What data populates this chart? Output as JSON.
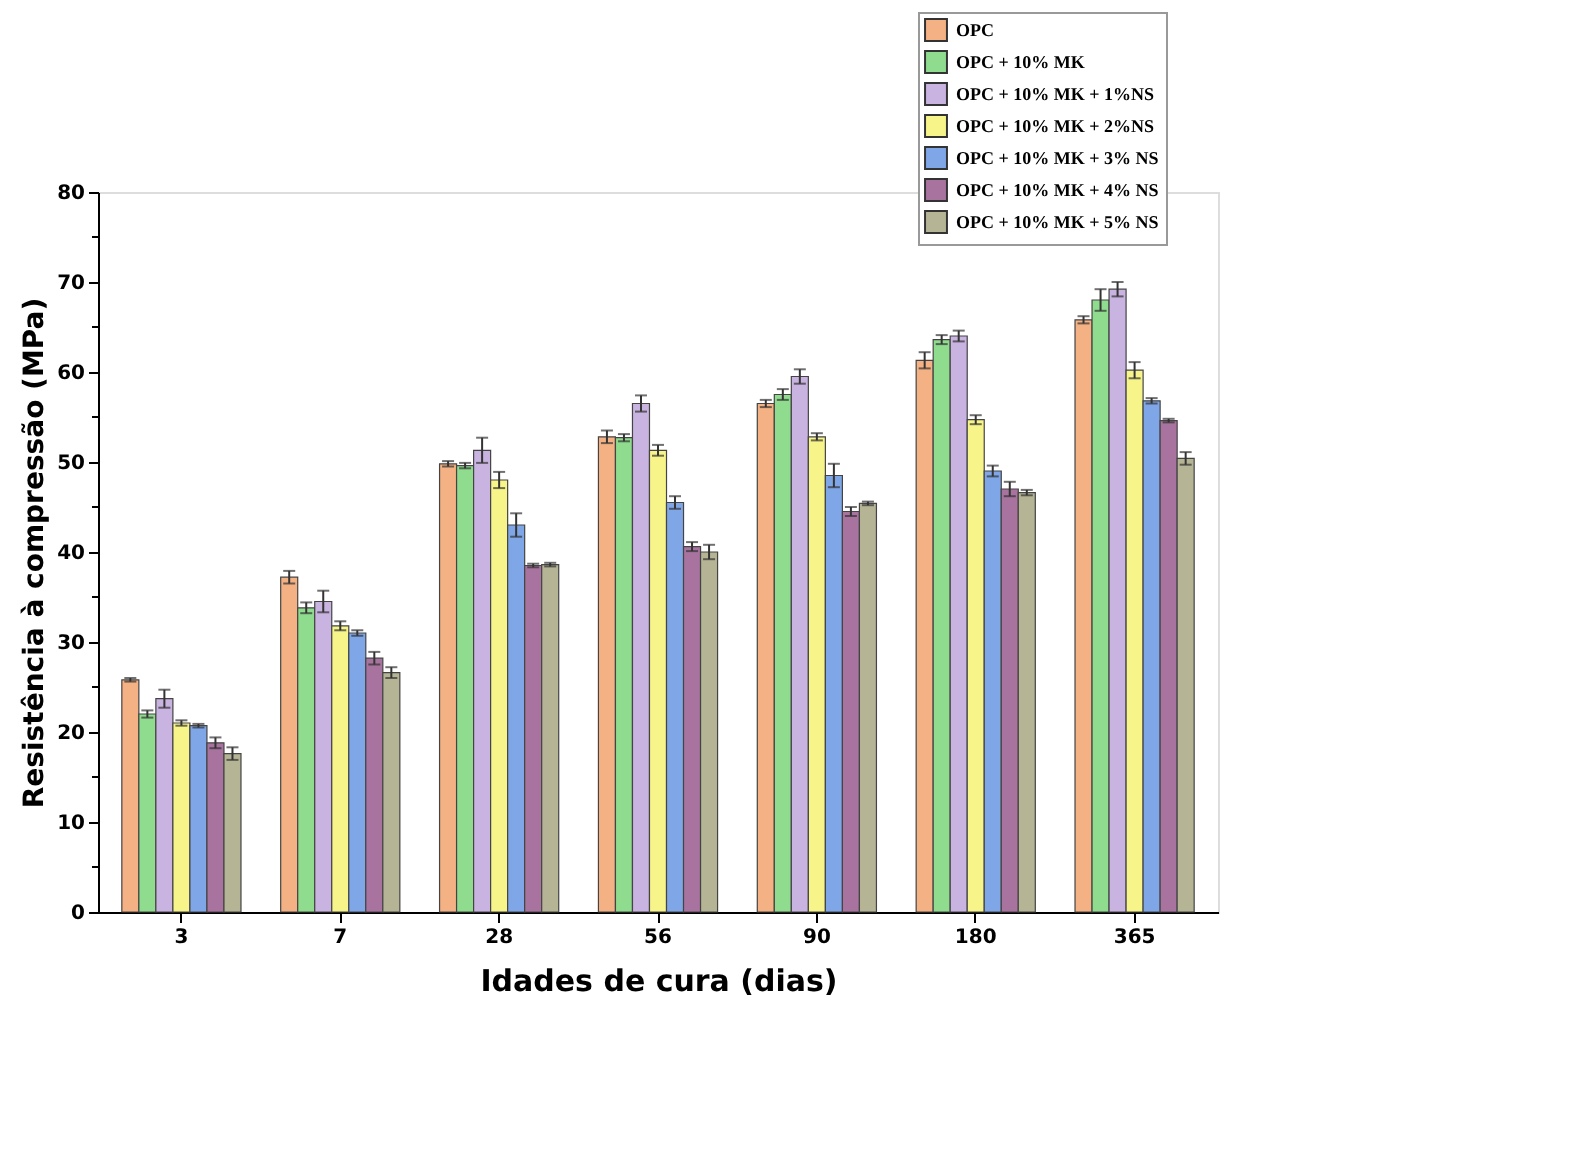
{
  "chart_data": {
    "type": "bar",
    "xlabel": "Idades de cura (dias)",
    "ylabel": "Resistência à compressão (MPa)",
    "categories": [
      "3",
      "7",
      "28",
      "56",
      "90",
      "180",
      "365"
    ],
    "series": [
      {
        "name": "OPC",
        "color": "#f4b183",
        "values": [
          25.8,
          37.2,
          49.8,
          52.8,
          56.5,
          61.3,
          65.8
        ],
        "errors": [
          0.2,
          0.7,
          0.3,
          0.7,
          0.4,
          0.9,
          0.4
        ]
      },
      {
        "name": "OPC + 10% MK",
        "color": "#8fdc8f",
        "values": [
          22.0,
          33.8,
          49.6,
          52.7,
          57.5,
          63.6,
          68.0
        ],
        "errors": [
          0.4,
          0.6,
          0.3,
          0.4,
          0.6,
          0.5,
          1.2
        ]
      },
      {
        "name": "OPC + 10% MK + 1%NS",
        "color": "#c9b3e0",
        "values": [
          23.7,
          34.5,
          51.3,
          56.5,
          59.5,
          64.0,
          69.2
        ],
        "errors": [
          1.0,
          1.2,
          1.4,
          0.9,
          0.8,
          0.6,
          0.8
        ]
      },
      {
        "name": "OPC + 10% MK + 2%NS",
        "color": "#f7f58a",
        "values": [
          21.0,
          31.8,
          48.0,
          51.3,
          52.8,
          54.7,
          60.2
        ],
        "errors": [
          0.3,
          0.5,
          0.9,
          0.6,
          0.4,
          0.5,
          0.9
        ]
      },
      {
        "name": "OPC + 10% MK + 3% NS",
        "color": "#7fa7e8",
        "values": [
          20.7,
          31.0,
          43.0,
          45.5,
          48.5,
          49.0,
          56.8
        ],
        "errors": [
          0.2,
          0.3,
          1.3,
          0.7,
          1.3,
          0.6,
          0.3
        ]
      },
      {
        "name": "OPC + 10% MK + 4% NS",
        "color": "#a8739f",
        "values": [
          18.8,
          28.2,
          38.5,
          40.6,
          44.5,
          47.0,
          54.6
        ],
        "errors": [
          0.6,
          0.7,
          0.2,
          0.5,
          0.5,
          0.8,
          0.2
        ]
      },
      {
        "name": "OPC + 10% MK + 5% NS",
        "color": "#b5b596",
        "values": [
          17.6,
          26.6,
          38.6,
          40.0,
          45.4,
          46.6,
          50.4
        ],
        "errors": [
          0.7,
          0.6,
          0.2,
          0.8,
          0.2,
          0.3,
          0.7
        ]
      }
    ],
    "ylim": [
      0,
      80
    ],
    "yticks": [
      0,
      {
        "value": 5,
        "label": null
      },
      10,
      {
        "value": 15,
        "label": null
      },
      20,
      {
        "value": 25,
        "label": null
      },
      30,
      {
        "value": 35,
        "label": null
      },
      40,
      {
        "value": 45,
        "label": null
      },
      50,
      {
        "value": 55,
        "label": null
      },
      60,
      {
        "value": 65,
        "label": null
      },
      70,
      {
        "value": 75,
        "label": null
      },
      80
    ],
    "legend": "top right",
    "grid": false
  }
}
